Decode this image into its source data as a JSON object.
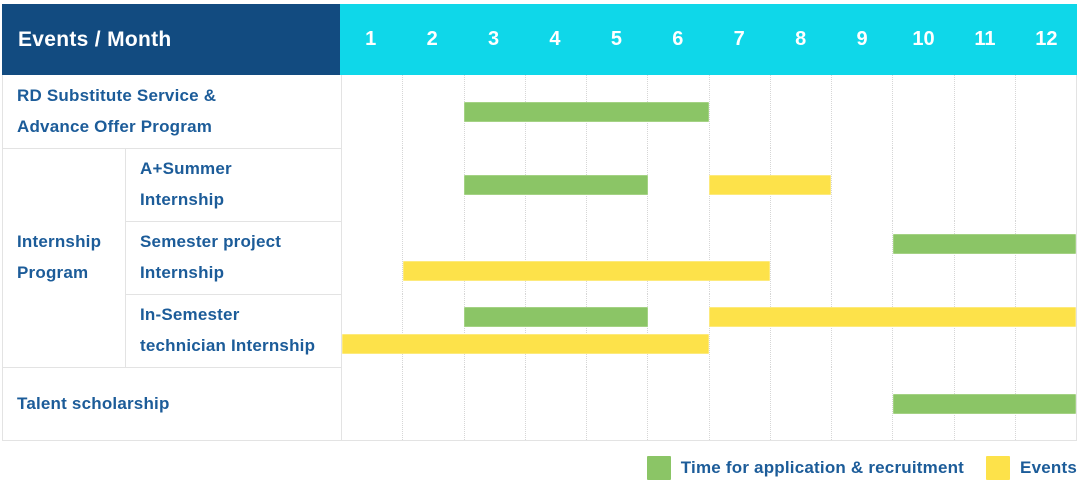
{
  "header": {
    "title": "Events / Month",
    "months": [
      "1",
      "2",
      "3",
      "4",
      "5",
      "6",
      "7",
      "8",
      "9",
      "10",
      "11",
      "12"
    ]
  },
  "rows": [
    {
      "label": "RD Substitute Service &\nAdvance Offer Program",
      "group": null,
      "bars": [
        {
          "type": "application",
          "start": 3,
          "end": 6,
          "lane": "single"
        }
      ]
    },
    {
      "label": "A+Summer\nInternship",
      "group": "Internship\nProgram",
      "bars": [
        {
          "type": "application",
          "start": 3,
          "end": 5,
          "lane": "single"
        },
        {
          "type": "event",
          "start": 7,
          "end": 8,
          "lane": "single"
        }
      ]
    },
    {
      "label": "Semester project\nInternship",
      "group": "Internship\nProgram",
      "bars": [
        {
          "type": "application",
          "start": 10,
          "end": 12,
          "lane": "upper"
        },
        {
          "type": "event",
          "start": 2,
          "end": 7,
          "lane": "lower"
        }
      ]
    },
    {
      "label": "In-Semester\ntechnician Internship",
      "group": "Internship\nProgram",
      "bars": [
        {
          "type": "application",
          "start": 3,
          "end": 5,
          "lane": "upper"
        },
        {
          "type": "event",
          "start": 7,
          "end": 12,
          "lane": "upper"
        },
        {
          "type": "event",
          "start": 1,
          "end": 6,
          "lane": "lower"
        }
      ]
    },
    {
      "label": "Talent scholarship",
      "group": null,
      "bars": [
        {
          "type": "application",
          "start": 10,
          "end": 12,
          "lane": "single"
        }
      ]
    }
  ],
  "legend": [
    {
      "type": "application",
      "label": "Time for application & recruitment"
    },
    {
      "type": "event",
      "label": "Events"
    }
  ],
  "colors": {
    "header_bg": "#124b80",
    "months_bg": "#0fd7e9",
    "application": "#8bc566",
    "event": "#fde24a",
    "label_text": "#1c5c99",
    "grid": "#e3e3e3"
  },
  "chart_data": {
    "type": "table",
    "title": "Events / Month",
    "columns": [
      "1",
      "2",
      "3",
      "4",
      "5",
      "6",
      "7",
      "8",
      "9",
      "10",
      "11",
      "12"
    ],
    "x_range": [
      1,
      12
    ],
    "rows": [
      {
        "event": "RD Substitute Service & Advance Offer Program",
        "application_recruitment_month_spans": [
          [
            3,
            6
          ]
        ],
        "event_month_spans": []
      },
      {
        "event": "Internship Program - A+Summer Internship",
        "application_recruitment_month_spans": [
          [
            3,
            5
          ]
        ],
        "event_month_spans": [
          [
            7,
            8
          ]
        ]
      },
      {
        "event": "Internship Program - Semester project Internship",
        "application_recruitment_month_spans": [
          [
            10,
            12
          ]
        ],
        "event_month_spans": [
          [
            2,
            7
          ]
        ]
      },
      {
        "event": "Internship Program - In-Semester technician Internship",
        "application_recruitment_month_spans": [
          [
            3,
            5
          ]
        ],
        "event_month_spans": [
          [
            1,
            6
          ],
          [
            7,
            12
          ]
        ]
      },
      {
        "event": "Talent scholarship",
        "application_recruitment_month_spans": [
          [
            10,
            12
          ]
        ],
        "event_month_spans": []
      }
    ],
    "legend": [
      "Time for application & recruitment",
      "Events"
    ],
    "legend_position": "bottom-right",
    "grid": true
  }
}
